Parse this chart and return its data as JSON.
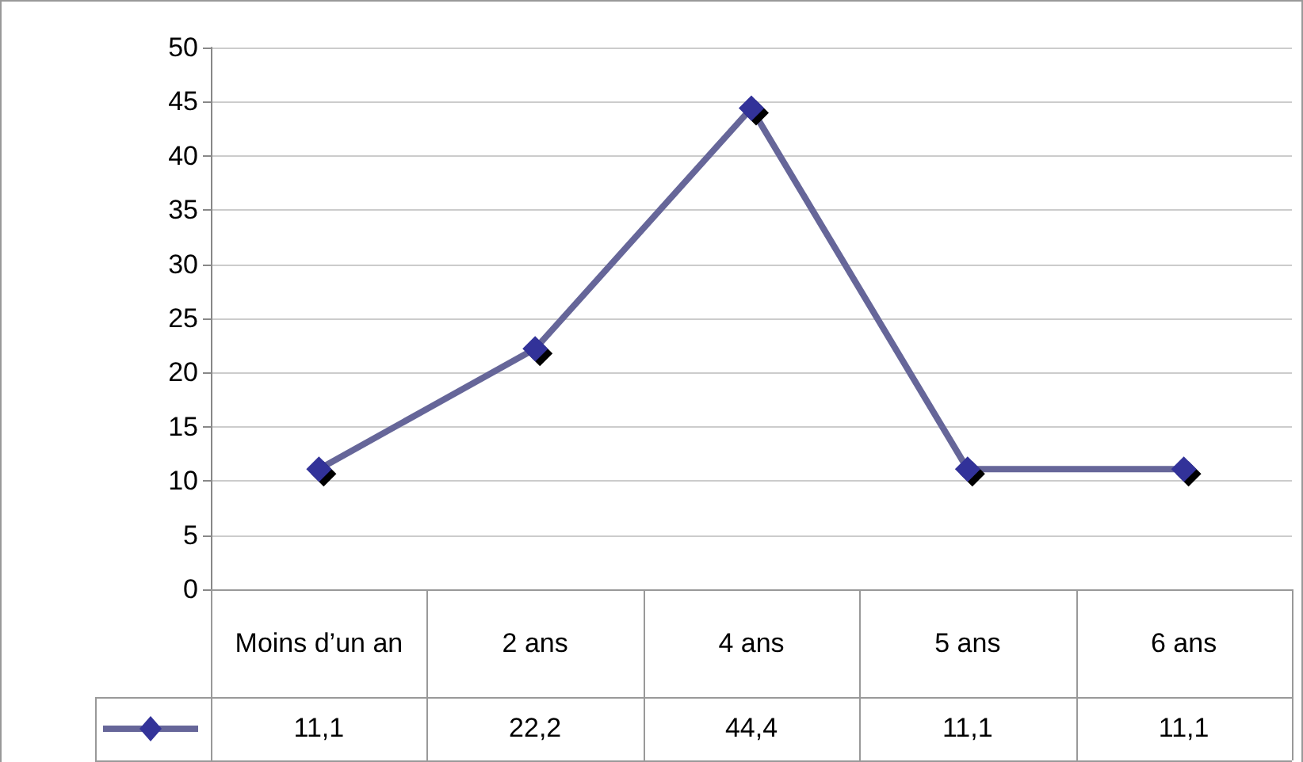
{
  "chart_data": {
    "type": "line",
    "categories": [
      "Moins d’un an",
      "2 ans",
      "4 ans",
      "5 ans",
      "6 ans"
    ],
    "series": [
      {
        "color": "#333399",
        "values": [
          11.1,
          22.2,
          44.4,
          11.1,
          11.1
        ],
        "value_labels": [
          "11,1",
          "22,2",
          "44,4",
          "11,1",
          "11,1"
        ]
      }
    ],
    "ylim": [
      0,
      50
    ],
    "yticks": [
      0,
      5,
      10,
      15,
      20,
      25,
      30,
      35,
      40,
      45,
      50
    ],
    "grid": "y",
    "marker": "diamond",
    "line_style": "solid"
  }
}
